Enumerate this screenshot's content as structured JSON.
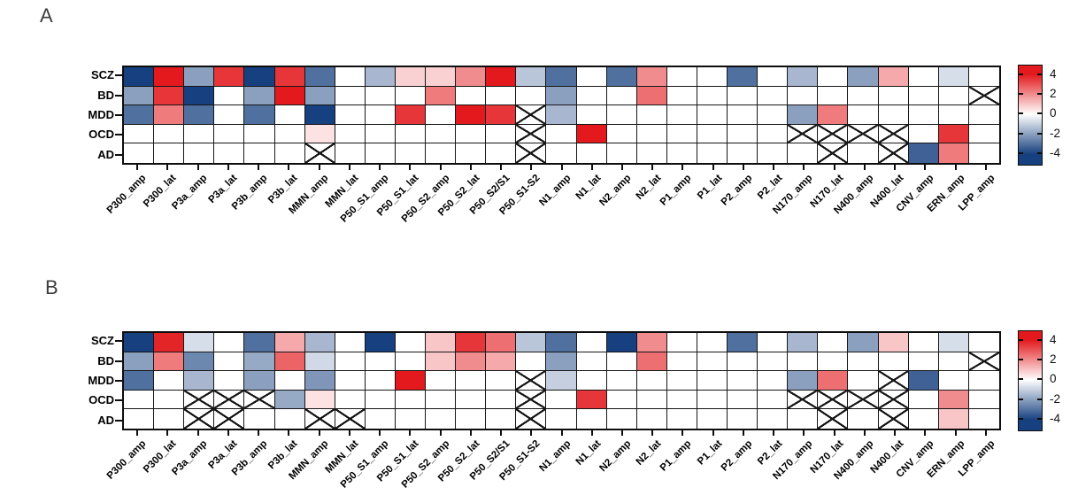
{
  "figure": {
    "panels": [
      {
        "letter": "A"
      },
      {
        "letter": "B"
      }
    ]
  },
  "chart_data": [
    {
      "type": "heatmap",
      "panel": "A",
      "rows": [
        "SCZ",
        "BD",
        "MDD",
        "OCD",
        "AD"
      ],
      "columns": [
        "P300_amp",
        "P300_lat",
        "P3a_amp",
        "P3a_lat",
        "P3b_amp",
        "P3b_lat",
        "MMN_amp",
        "MMN_lat",
        "P50_S1_amp",
        "P50_S1_lat",
        "P50_S2_amp",
        "P50_S2_lat",
        "P50_S2/S1",
        "P50_S1-S2",
        "N1_amp",
        "N1_lat",
        "N2_amp",
        "N2_lat",
        "P1_amp",
        "P1_lat",
        "P2_amp",
        "P2_lat",
        "N170_amp",
        "N170_lat",
        "N400_amp",
        "N400_lat",
        "CNV_amp",
        "ERN_amp",
        "LPP_amp"
      ],
      "values": [
        [
          -4,
          4,
          -2,
          3.5,
          -4,
          3.5,
          -3,
          0,
          -1.5,
          0.8,
          0.8,
          2,
          4,
          -1.2,
          -3,
          0,
          -3,
          2,
          0,
          0,
          -3,
          0,
          -1.5,
          0,
          -2,
          1.5,
          0,
          -0.7,
          0
        ],
        [
          -2,
          3.5,
          -4,
          0,
          -2,
          4,
          -2,
          0,
          0,
          0,
          2.3,
          0,
          0,
          0,
          -2,
          0,
          0,
          2.5,
          0,
          0,
          0,
          0,
          0,
          0,
          0,
          0,
          0,
          0,
          "x"
        ],
        [
          -3,
          2.3,
          -3,
          0,
          -3,
          0,
          -4,
          0,
          0,
          3.5,
          0,
          4,
          3.5,
          "x",
          -1.5,
          0,
          0,
          0,
          0,
          0,
          0,
          0,
          -2,
          2.3,
          0,
          0,
          0,
          0,
          0
        ],
        [
          0,
          0,
          0,
          0,
          0,
          0,
          0.5,
          0,
          0,
          0,
          0,
          0,
          0,
          "x",
          0,
          4,
          0,
          0,
          0,
          0,
          0,
          0,
          "x",
          "x",
          "x",
          "x",
          0,
          3.5,
          0
        ],
        [
          0,
          0,
          0,
          0,
          0,
          0,
          "x",
          0,
          0,
          0,
          0,
          0,
          0,
          "x",
          0,
          0,
          0,
          0,
          0,
          0,
          0,
          0,
          0,
          "x",
          0,
          "x",
          -3.3,
          2.3,
          0
        ]
      ],
      "crossed_symbol": "x",
      "colorbar": {
        "min": -4,
        "max": 4,
        "ticks": [
          "4",
          "2",
          "0",
          "-2",
          "-4"
        ],
        "color_positive": "#e3191d",
        "color_zero": "#ffffff",
        "color_negative": "#16407f",
        "position": "right"
      }
    },
    {
      "type": "heatmap",
      "panel": "B",
      "rows": [
        "SCZ",
        "BD",
        "MDD",
        "OCD",
        "AD"
      ],
      "columns": [
        "P300_amp",
        "P300_lat",
        "P3a_amp",
        "P3a_lat",
        "P3b_amp",
        "P3b_lat",
        "MMN_amp",
        "MMN_lat",
        "P50_S1_amp",
        "P50_S1_lat",
        "P50_S2_amp",
        "P50_S2_lat",
        "P50_S2/S1",
        "P50_S1-S2",
        "N1_amp",
        "N1_lat",
        "N2_amp",
        "N2_lat",
        "P1_amp",
        "P1_lat",
        "P2_amp",
        "P2_lat",
        "N170_amp",
        "N170_lat",
        "N400_amp",
        "N400_lat",
        "CNV_amp",
        "ERN_amp",
        "LPP_amp"
      ],
      "values": [
        [
          -4,
          3.8,
          -0.7,
          0,
          -3,
          1.5,
          -1.5,
          0,
          -4,
          0,
          1,
          3.5,
          2.5,
          -1.2,
          -3,
          0,
          -4,
          2,
          0,
          0,
          -3,
          0,
          -1.5,
          0,
          -2,
          1,
          0,
          -0.7,
          0
        ],
        [
          -2,
          2.3,
          -2.5,
          0,
          -1.8,
          2.7,
          -0.8,
          0,
          0,
          0,
          1,
          2,
          1.5,
          0,
          -2,
          0,
          0,
          2.5,
          0,
          0,
          0,
          0,
          0,
          0,
          0,
          0,
          0,
          0,
          "x"
        ],
        [
          -3,
          0,
          -1.5,
          0,
          -2,
          0,
          -2.2,
          0,
          0,
          4,
          0,
          0,
          0,
          "x",
          -1,
          0,
          0,
          0,
          0,
          0,
          0,
          0,
          -2,
          2.5,
          0,
          "x",
          -3.3,
          0,
          0
        ],
        [
          0,
          0,
          "x",
          "x",
          "x",
          -1.8,
          0.5,
          0,
          0,
          0,
          0,
          0,
          0,
          "x",
          0,
          3.5,
          0,
          0,
          0,
          0,
          0,
          0,
          "x",
          "x",
          "x",
          "x",
          0,
          2,
          0
        ],
        [
          0,
          0,
          "x",
          "x",
          0,
          0,
          "x",
          "x",
          0,
          0,
          0,
          0,
          0,
          "x",
          0,
          0,
          0,
          0,
          0,
          0,
          0,
          0,
          0,
          "x",
          0,
          "x",
          0,
          1,
          0
        ]
      ],
      "crossed_symbol": "x",
      "colorbar": {
        "min": -4,
        "max": 4,
        "ticks": [
          "4",
          "2",
          "0",
          "-2",
          "-4"
        ],
        "color_positive": "#e3191d",
        "color_zero": "#ffffff",
        "color_negative": "#16407f",
        "position": "right"
      }
    }
  ]
}
